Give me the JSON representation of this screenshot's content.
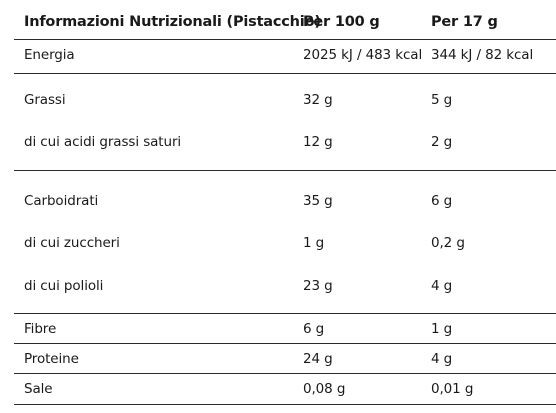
{
  "header": {
    "col_label": "Informazioni Nutrizionali (Pistacchio)",
    "col_per100": "Per 100 g",
    "col_per17": "Per 17 g"
  },
  "rows": [
    {
      "label": "Energia",
      "per100": "2025 kJ / 483 kcal",
      "per17": "344 kJ / 82 kcal"
    },
    {
      "label": "Grassi",
      "per100": "32 g",
      "per17": "5 g"
    },
    {
      "label": "di cui acidi grassi saturi",
      "per100": "12 g",
      "per17": "2 g"
    },
    {
      "label": "Carboidrati",
      "per100": "35 g",
      "per17": "6 g"
    },
    {
      "label": "di cui zuccheri",
      "per100": "1 g",
      "per17": "0,2 g"
    },
    {
      "label": "di cui polioli",
      "per100": "23 g",
      "per17": "4 g"
    },
    {
      "label": "Fibre",
      "per100": "6 g",
      "per17": "1 g"
    },
    {
      "label": "Proteine",
      "per100": "24 g",
      "per17": "4 g"
    },
    {
      "label": "Sale",
      "per100": "0,08 g",
      "per17": "0,01 g"
    }
  ]
}
